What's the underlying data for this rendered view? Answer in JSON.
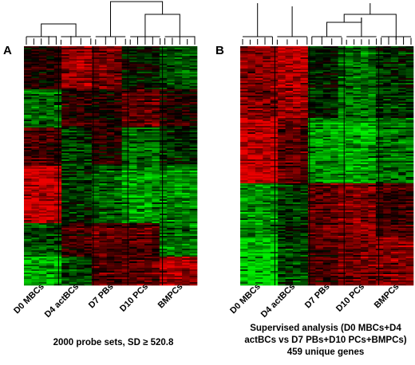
{
  "chart_data": [
    {
      "type": "heatmap",
      "panel_label": "A",
      "categories": [
        "D0 MBCs",
        "D4 actBCs",
        "D7 PBs",
        "D10 PCs",
        "BMPCs"
      ],
      "samples_per_group": [
        5,
        4,
        4,
        5,
        5
      ],
      "caption": [
        "2000 probe sets, SD ≥ 520.8"
      ],
      "color_scale": {
        "low": "#00e000",
        "mid": "#000000",
        "high": "#e00000"
      },
      "row_clusters": [
        {
          "fraction": 0.18,
          "pattern": [
            0.1,
            0.7,
            0.5,
            -0.1,
            -0.4
          ]
        },
        {
          "fraction": 0.16,
          "pattern": [
            -0.5,
            0.2,
            0.1,
            0.4,
            0.1
          ]
        },
        {
          "fraction": 0.16,
          "pattern": [
            0.3,
            -0.3,
            0.1,
            -0.5,
            -0.2
          ]
        },
        {
          "fraction": 0.24,
          "pattern": [
            0.9,
            -0.2,
            -0.4,
            -0.7,
            -0.6
          ]
        },
        {
          "fraction": 0.14,
          "pattern": [
            -0.3,
            0.3,
            0.5,
            0.4,
            -0.5
          ]
        },
        {
          "fraction": 0.12,
          "pattern": [
            -0.8,
            -0.3,
            0.4,
            0.5,
            0.8
          ]
        }
      ]
    },
    {
      "type": "heatmap",
      "panel_label": "B",
      "categories": [
        "D0 MBCs",
        "D4 actBCs",
        "D7 PBs",
        "D10 PCs",
        "BMPCs"
      ],
      "samples_per_group": [
        5,
        4,
        4,
        5,
        5
      ],
      "caption": [
        "Supervised analysis (D0 MBCs+D4",
        "actBCs vs D7 PBs+D10 PCs+BMPCs)",
        "459  unique genes"
      ],
      "color_scale": {
        "low": "#00e000",
        "mid": "#000000",
        "high": "#e00000"
      },
      "row_clusters": [
        {
          "fraction": 0.3,
          "pattern": [
            0.6,
            0.8,
            -0.1,
            -0.5,
            -0.2
          ]
        },
        {
          "fraction": 0.27,
          "pattern": [
            0.9,
            0.4,
            -0.7,
            -0.8,
            -0.5
          ]
        },
        {
          "fraction": 0.23,
          "pattern": [
            -0.6,
            -0.2,
            0.5,
            0.6,
            0.3
          ]
        },
        {
          "fraction": 0.2,
          "pattern": [
            -1.0,
            -0.3,
            0.3,
            0.5,
            0.6
          ]
        }
      ]
    }
  ]
}
